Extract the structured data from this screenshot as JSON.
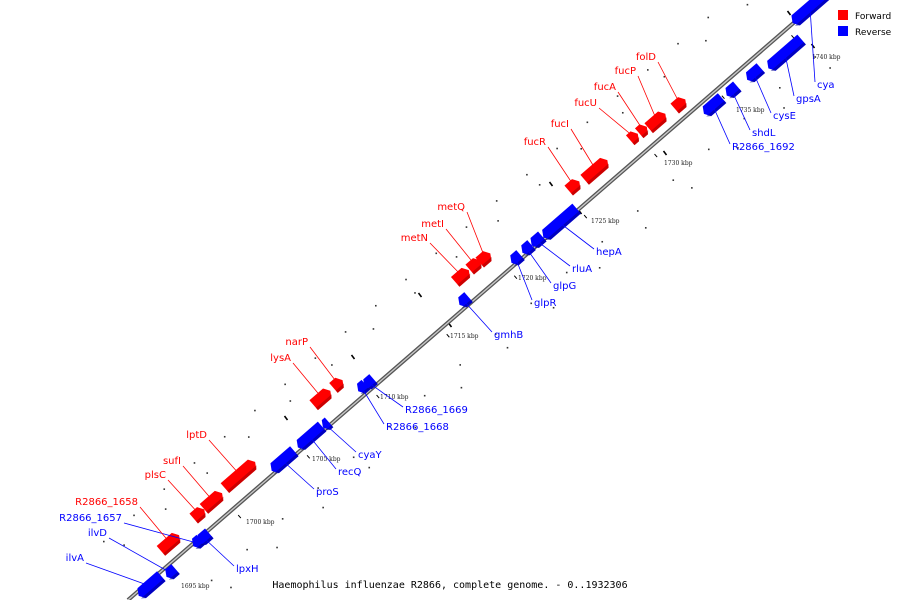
{
  "title": "Haemophilus influenzae R2866, complete genome. - 0..1932306",
  "colors": {
    "forward": "#ff0000",
    "reverse": "#0000ff",
    "backbone": "#888888"
  },
  "legend": [
    {
      "label": "Forward",
      "color": "#ff0000"
    },
    {
      "label": "Reverse",
      "color": "#0000ff"
    }
  ],
  "chart_data": {
    "type": "genome-map",
    "strands": [
      "Forward",
      "Reverse"
    ],
    "tick_labels": [
      "1695 kbp",
      "1700 kbp",
      "1705 kbp",
      "1710 kbp",
      "1715 kbp",
      "1720 kbp",
      "1725 kbp",
      "1730 kbp",
      "1735 kbp",
      "1740 kbp"
    ],
    "genes": [
      {
        "name": "ilvA",
        "strand": "Reverse"
      },
      {
        "name": "ilvD",
        "strand": "Reverse"
      },
      {
        "name": "R2866_1657",
        "strand": "Reverse"
      },
      {
        "name": "R2866_1658",
        "strand": "Forward"
      },
      {
        "name": "plsC",
        "strand": "Forward"
      },
      {
        "name": "sufI",
        "strand": "Forward"
      },
      {
        "name": "lptD",
        "strand": "Forward"
      },
      {
        "name": "lpxH",
        "strand": "Reverse"
      },
      {
        "name": "proS",
        "strand": "Reverse"
      },
      {
        "name": "recQ",
        "strand": "Reverse"
      },
      {
        "name": "cyaY",
        "strand": "Reverse"
      },
      {
        "name": "lysA",
        "strand": "Forward"
      },
      {
        "name": "narP",
        "strand": "Forward"
      },
      {
        "name": "R2866_1668",
        "strand": "Reverse"
      },
      {
        "name": "R2866_1669",
        "strand": "Reverse"
      },
      {
        "name": "gmhB",
        "strand": "Reverse"
      },
      {
        "name": "metN",
        "strand": "Forward"
      },
      {
        "name": "metI",
        "strand": "Forward"
      },
      {
        "name": "metQ",
        "strand": "Forward"
      },
      {
        "name": "glpR",
        "strand": "Reverse"
      },
      {
        "name": "glpG",
        "strand": "Reverse"
      },
      {
        "name": "rluA",
        "strand": "Reverse"
      },
      {
        "name": "hepA",
        "strand": "Reverse"
      },
      {
        "name": "fucR",
        "strand": "Forward"
      },
      {
        "name": "fucI",
        "strand": "Forward"
      },
      {
        "name": "fucU",
        "strand": "Forward"
      },
      {
        "name": "fucA",
        "strand": "Forward"
      },
      {
        "name": "fucP",
        "strand": "Forward"
      },
      {
        "name": "folD",
        "strand": "Forward"
      },
      {
        "name": "R2866_1692",
        "strand": "Reverse"
      },
      {
        "name": "shdL",
        "strand": "Reverse"
      },
      {
        "name": "cysE",
        "strand": "Reverse"
      },
      {
        "name": "gpsA",
        "strand": "Reverse"
      },
      {
        "name": "cya",
        "strand": "Reverse"
      }
    ]
  }
}
